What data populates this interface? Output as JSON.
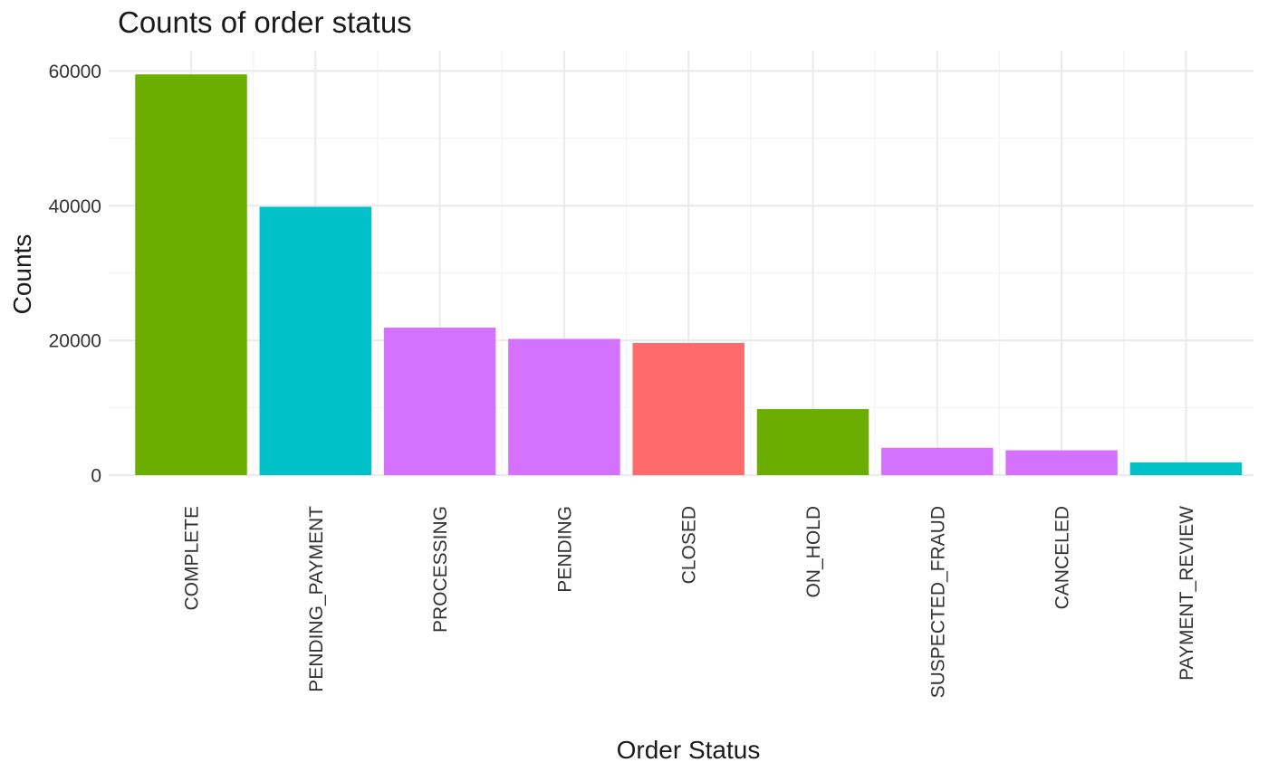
{
  "chart_data": {
    "type": "bar",
    "title": "Counts of order status",
    "xlabel": "Order Status",
    "ylabel": "Counts",
    "categories": [
      "COMPLETE",
      "PENDING_PAYMENT",
      "PROCESSING",
      "PENDING",
      "CLOSED",
      "ON_HOLD",
      "SUSPECTED_FRAUD",
      "CANCELED",
      "PAYMENT_REVIEW"
    ],
    "values": [
      59491,
      39832,
      21902,
      20227,
      19616,
      9804,
      4062,
      3692,
      1893
    ],
    "colors": [
      "#6bae00",
      "#00c1c7",
      "#d472ff",
      "#d472ff",
      "#ff6b6b",
      "#6bae00",
      "#d472ff",
      "#d472ff",
      "#00c1c7"
    ],
    "ylim": [
      0,
      63000
    ],
    "yticks": [
      0,
      20000,
      40000,
      60000
    ],
    "ytick_labels": [
      "0",
      "20000",
      "40000",
      "60000"
    ],
    "y_minor_ticks": [
      10000,
      30000,
      50000
    ],
    "grid": true,
    "legend": "none"
  }
}
